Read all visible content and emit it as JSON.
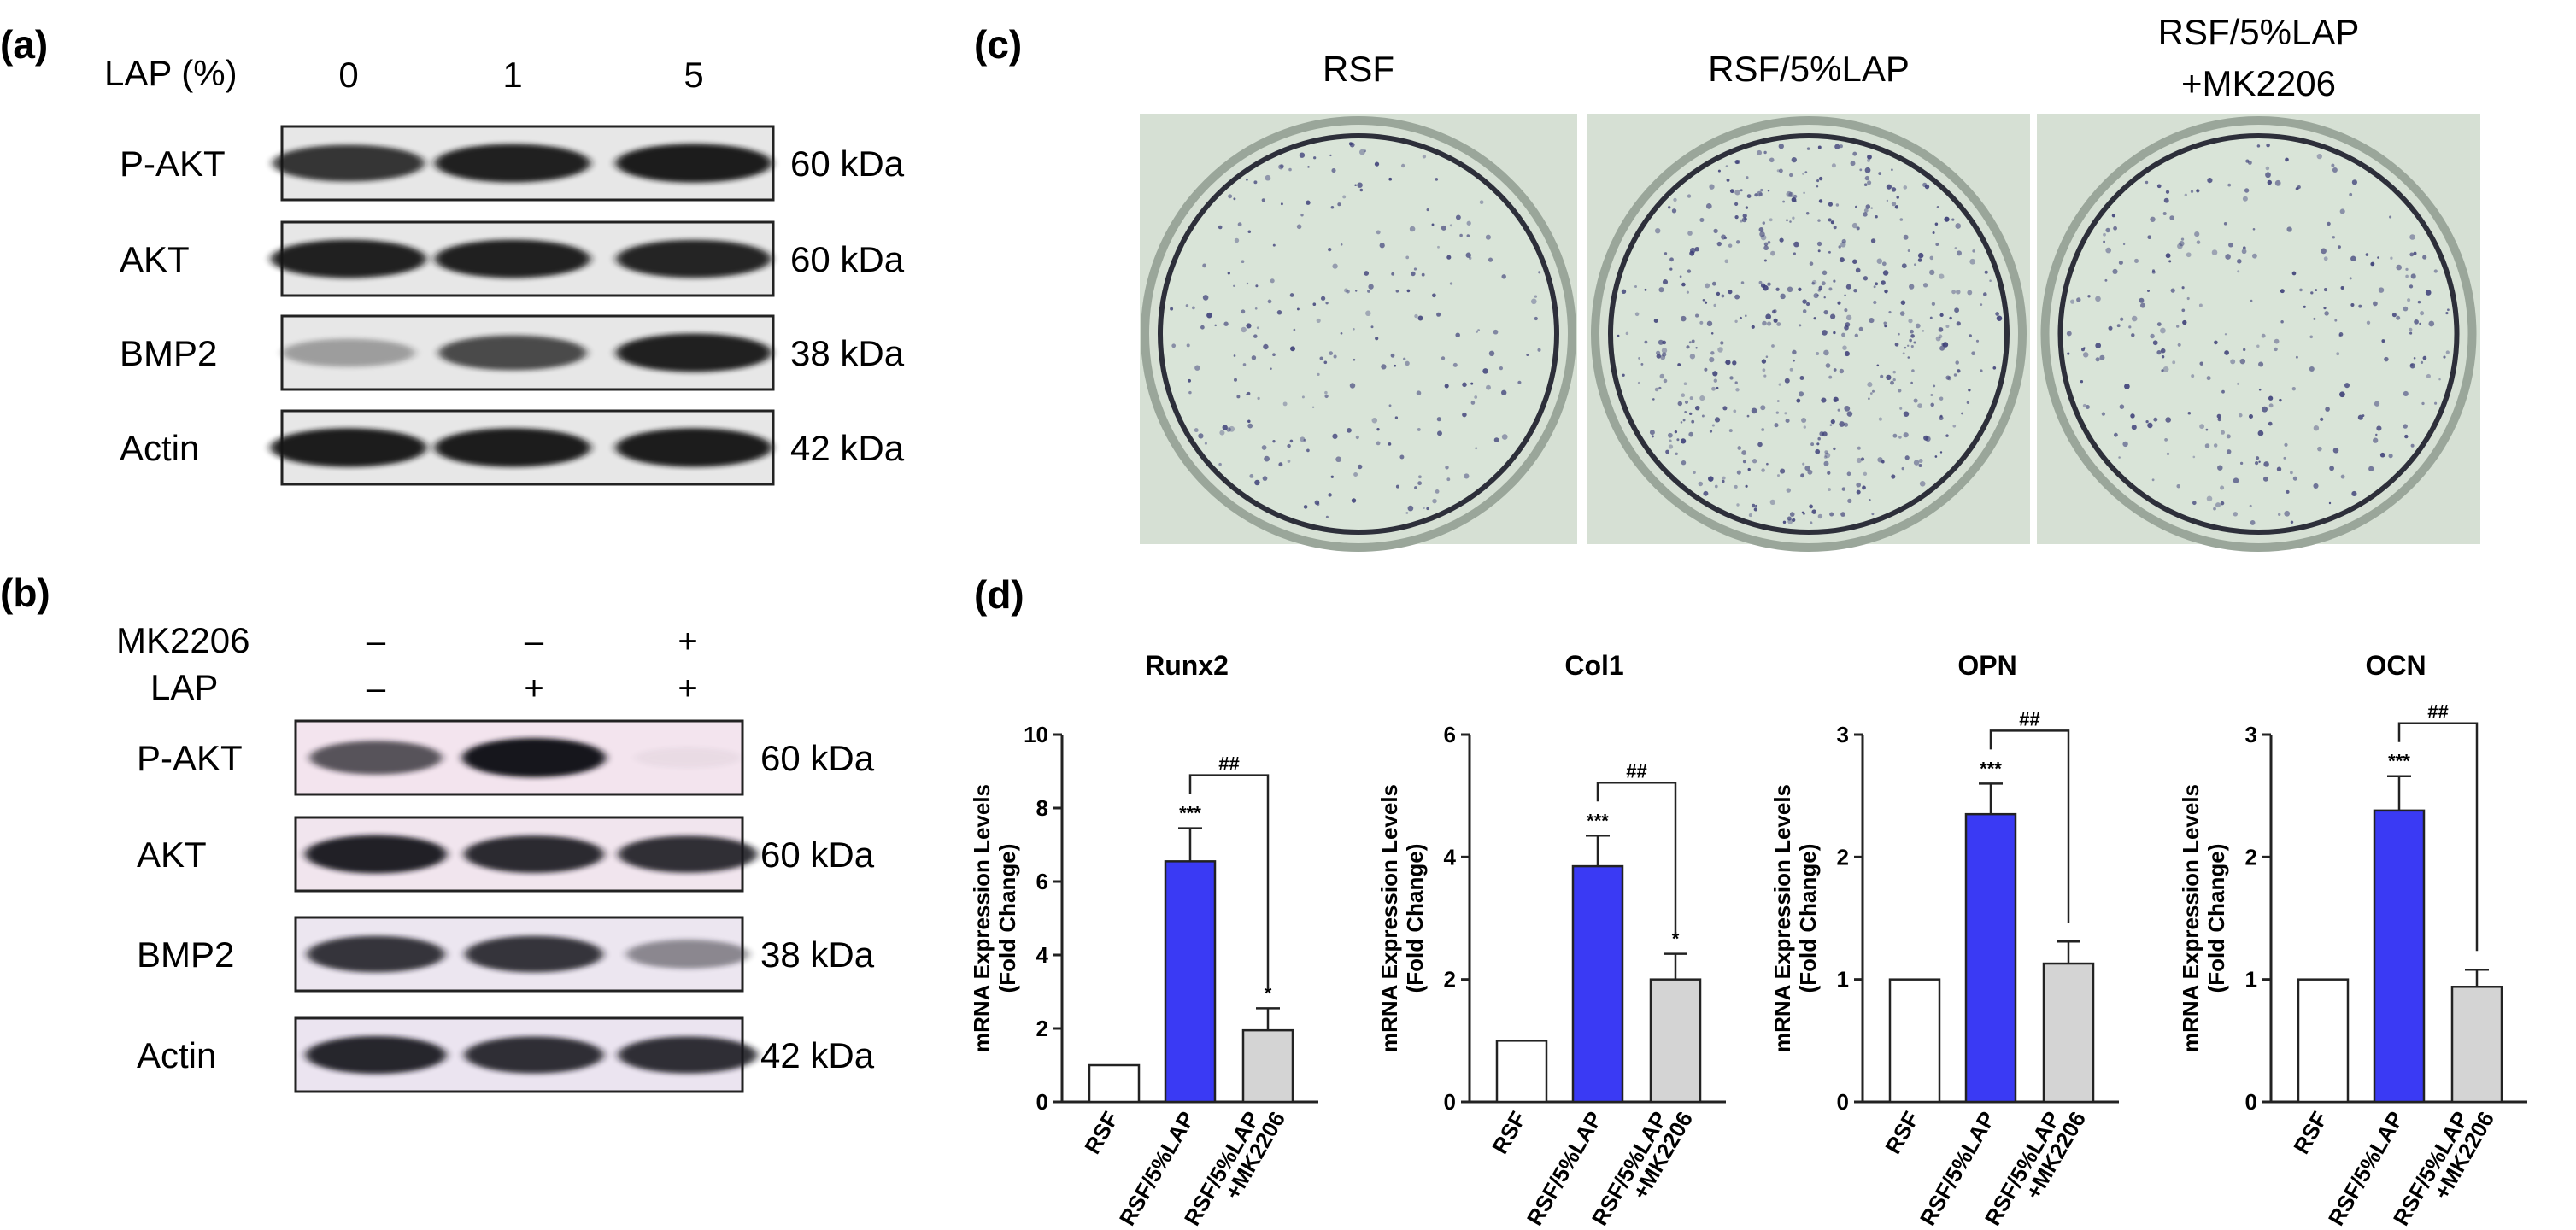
{
  "panels": {
    "a": {
      "letter": "(a)",
      "lap_header": "LAP (%)",
      "doses": [
        "0",
        "1",
        "5"
      ],
      "blots": [
        {
          "label": "P-AKT",
          "kda": "60 kDa",
          "intensity": [
            0.85,
            0.95,
            0.97
          ]
        },
        {
          "label": "AKT",
          "kda": "60 kDa",
          "intensity": [
            0.95,
            0.95,
            0.93
          ]
        },
        {
          "label": "BMP2",
          "kda": "38 kDa",
          "intensity": [
            0.35,
            0.75,
            0.95
          ]
        },
        {
          "label": "Actin",
          "kda": "42 kDa",
          "intensity": [
            0.97,
            0.97,
            0.97
          ]
        }
      ]
    },
    "b": {
      "letter": "(b)",
      "treatments": [
        {
          "label": "MK2206",
          "signs": [
            "–",
            "–",
            "+"
          ]
        },
        {
          "label": "LAP",
          "signs": [
            "–",
            "+",
            "+"
          ]
        }
      ],
      "blots": [
        {
          "label": "P-AKT",
          "kda": "60 kDa",
          "intensity": [
            0.7,
            1.0,
            0.03
          ],
          "tint": "#f3e4ee"
        },
        {
          "label": "AKT",
          "kda": "60 kDa",
          "intensity": [
            0.95,
            0.9,
            0.88
          ],
          "tint": "#f1e5ee"
        },
        {
          "label": "BMP2",
          "kda": "38 kDa",
          "intensity": [
            0.85,
            0.85,
            0.45
          ],
          "tint": "#ece6f0"
        },
        {
          "label": "Actin",
          "kda": "42 kDa",
          "intensity": [
            0.92,
            0.88,
            0.88
          ],
          "tint": "#ebe4f0"
        }
      ]
    },
    "c": {
      "letter": "(c)",
      "wells": [
        {
          "label_lines": [
            "RSF"
          ],
          "stain_density": 0.45
        },
        {
          "label_lines": [
            "RSF/5%LAP"
          ],
          "stain_density": 1.0
        },
        {
          "label_lines": [
            "RSF/5%LAP",
            "+MK2206"
          ],
          "stain_density": 0.55
        }
      ]
    },
    "d": {
      "letter": "(d)"
    }
  },
  "colors": {
    "bar_rsf": "#ffffff",
    "bar_lap": "#3a3af4",
    "bar_mk": "#d4d4d4",
    "well_bg": "#d9e4d8",
    "stain": "#3d3f78"
  },
  "chart_data": [
    {
      "type": "bar",
      "title": "Runx2",
      "ylabel": "mRNA Expression Levels\n(Fold Change)",
      "categories": [
        "RSF",
        "RSF/5%LAP",
        "RSF/5%LAP\n+MK2206"
      ],
      "values": [
        1.0,
        6.55,
        1.95
      ],
      "errors": [
        0,
        0.9,
        0.6
      ],
      "significance": [
        "",
        "***",
        "*"
      ],
      "bracket": "##",
      "ylim": [
        0,
        10
      ],
      "yticks": [
        "0",
        "2",
        "4",
        "6",
        "8",
        "10"
      ]
    },
    {
      "type": "bar",
      "title": "Col1",
      "ylabel": "mRNA Expression Levels\n(Fold Change)",
      "categories": [
        "RSF",
        "RSF/5%LAP",
        "RSF/5%LAP\n+MK2206"
      ],
      "values": [
        1.0,
        3.85,
        2.0
      ],
      "errors": [
        0,
        0.5,
        0.42
      ],
      "significance": [
        "",
        "***",
        "*"
      ],
      "bracket": "##",
      "ylim": [
        0,
        6
      ],
      "yticks": [
        "0",
        "2",
        "4",
        "6"
      ]
    },
    {
      "type": "bar",
      "title": "OPN",
      "ylabel": "mRNA Expression Levels\n(Fold Change)",
      "categories": [
        "RSF",
        "RSF/5%LAP",
        "RSF/5%LAP\n+MK2206"
      ],
      "values": [
        1.0,
        2.35,
        1.13
      ],
      "errors": [
        0,
        0.25,
        0.18
      ],
      "significance": [
        "",
        "***",
        ""
      ],
      "bracket": "##",
      "ylim": [
        0,
        3
      ],
      "yticks": [
        "0",
        "1",
        "2",
        "3"
      ]
    },
    {
      "type": "bar",
      "title": "OCN",
      "ylabel": "mRNA Expression Levels\n(Fold Change)",
      "categories": [
        "RSF",
        "RSF/5%LAP",
        "RSF/5%LAP\n+MK2206"
      ],
      "values": [
        1.0,
        2.38,
        0.94
      ],
      "errors": [
        0,
        0.28,
        0.14
      ],
      "significance": [
        "",
        "***",
        ""
      ],
      "bracket": "##",
      "ylim": [
        0,
        3
      ],
      "yticks": [
        "0",
        "1",
        "2",
        "3"
      ]
    }
  ]
}
